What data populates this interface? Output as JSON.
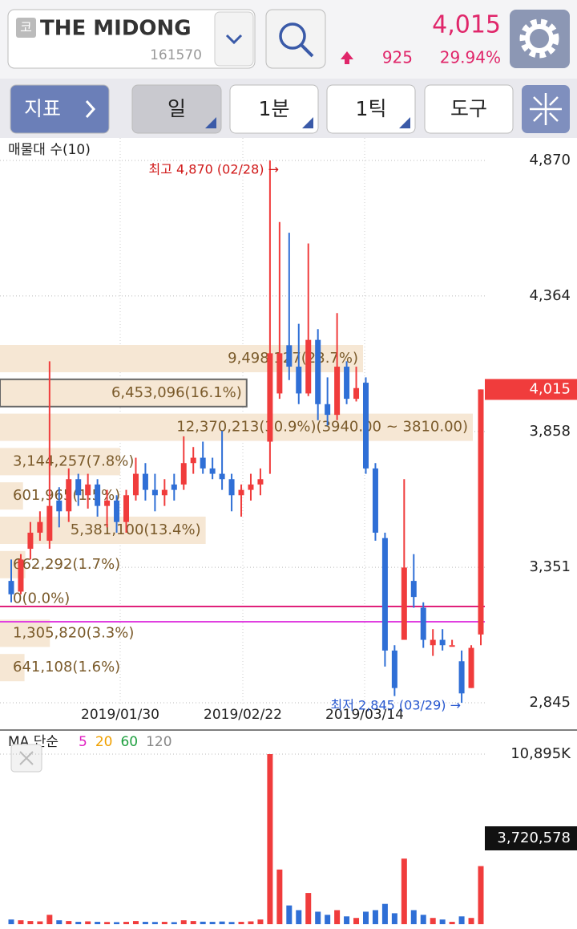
{
  "header": {
    "code_badge": "코",
    "name": "THE MIDONG",
    "code": "161570",
    "price": "4,015",
    "change": "925",
    "change_pct": "29.94%"
  },
  "toolbar": {
    "buttons": [
      "지표",
      "일",
      "1분",
      "1틱",
      "도구"
    ]
  },
  "chart": {
    "profile_title": "매물대 수(10)",
    "ylim": [
      2845,
      4870
    ],
    "yticks": [
      {
        "value": 4870,
        "label": "4,870"
      },
      {
        "value": 4364,
        "label": "4,364"
      },
      {
        "value": 3858,
        "label": "3,858"
      },
      {
        "value": 3351,
        "label": "3,351"
      },
      {
        "value": 2845,
        "label": "2,845"
      }
    ],
    "current_price": {
      "value": 4015,
      "label": "4,015"
    },
    "high_label": "최고 4,870 (02/28) →",
    "low_label": "최저 2,845 (03/29) →",
    "dates": [
      "2019/01/30",
      "2019/02/22",
      "2019/03/14"
    ],
    "up_color": "#f03c3c",
    "down_color": "#2f6fd6",
    "candles": [
      [
        3300,
        3380,
        3220,
        3250
      ],
      [
        3260,
        3400,
        3250,
        3380
      ],
      [
        3420,
        3520,
        3380,
        3480
      ],
      [
        3480,
        3560,
        3450,
        3520
      ],
      [
        3450,
        4120,
        3420,
        3580
      ],
      [
        3600,
        3650,
        3500,
        3560
      ],
      [
        3560,
        3720,
        3520,
        3680
      ],
      [
        3680,
        3700,
        3580,
        3620
      ],
      [
        3620,
        3700,
        3570,
        3660
      ],
      [
        3660,
        3680,
        3540,
        3580
      ],
      [
        3580,
        3640,
        3500,
        3600
      ],
      [
        3600,
        3620,
        3480,
        3520
      ],
      [
        3520,
        3640,
        3480,
        3620
      ],
      [
        3620,
        3760,
        3600,
        3700
      ],
      [
        3700,
        3740,
        3600,
        3640
      ],
      [
        3640,
        3700,
        3560,
        3620
      ],
      [
        3620,
        3680,
        3580,
        3640
      ],
      [
        3660,
        3700,
        3600,
        3640
      ],
      [
        3660,
        3840,
        3640,
        3740
      ],
      [
        3740,
        3800,
        3700,
        3760
      ],
      [
        3760,
        3820,
        3700,
        3720
      ],
      [
        3720,
        3760,
        3680,
        3700
      ],
      [
        3700,
        3860,
        3640,
        3680
      ],
      [
        3680,
        3700,
        3560,
        3620
      ],
      [
        3620,
        3660,
        3540,
        3640
      ],
      [
        3640,
        3700,
        3600,
        3660
      ],
      [
        3660,
        3720,
        3620,
        3680
      ],
      [
        3820,
        4870,
        3700,
        4150
      ],
      [
        4000,
        4640,
        3980,
        4150
      ],
      [
        4180,
        4600,
        4050,
        4100
      ],
      [
        4100,
        4260,
        3960,
        4000
      ],
      [
        4000,
        4560,
        3990,
        4200
      ],
      [
        4200,
        4240,
        3900,
        3960
      ],
      [
        3960,
        4060,
        3880,
        3920
      ],
      [
        3920,
        4300,
        3900,
        4100
      ],
      [
        4100,
        4120,
        3960,
        3980
      ],
      [
        3980,
        4100,
        3970,
        4020
      ],
      [
        4040,
        4060,
        3700,
        3720
      ],
      [
        3720,
        3740,
        3450,
        3480
      ],
      [
        3460,
        3480,
        2980,
        3040
      ],
      [
        3040,
        3060,
        2870,
        2900
      ],
      [
        3080,
        3680,
        3080,
        3350
      ],
      [
        3300,
        3400,
        3200,
        3240
      ],
      [
        3200,
        3220,
        3050,
        3080
      ],
      [
        3060,
        3120,
        3020,
        3080
      ],
      [
        3080,
        3120,
        3040,
        3060
      ],
      [
        3060,
        3080,
        3060,
        3060
      ],
      [
        3000,
        3040,
        2845,
        2880
      ],
      [
        2900,
        3060,
        2900,
        3050
      ],
      [
        3100,
        4015,
        3060,
        4015
      ]
    ],
    "profile": [
      {
        "volume": 9498127,
        "label": "9,498,127(23.7%)"
      },
      {
        "volume": 6453096,
        "label": "6,453,096(16.1%)"
      },
      {
        "volume": 12370213,
        "label": "12,370,213(30.9%)(3940.00 ~ 3810.00)"
      },
      {
        "volume": 3144257,
        "label": "3,144,257(7.8%)"
      },
      {
        "volume": 601965,
        "label": "601,965(1.5%)"
      },
      {
        "volume": 5381100,
        "label": "5,381,100(13.4%)"
      },
      {
        "volume": 662292,
        "label": "662,292(1.7%)"
      },
      {
        "volume": 0,
        "label": "0(0.0%)"
      },
      {
        "volume": 1305820,
        "label": "1,305,820(3.3%)"
      },
      {
        "volume": 641108,
        "label": "641,108(1.6%)"
      }
    ]
  },
  "volume": {
    "title": "MA 단순",
    "ma": [
      {
        "period": 5,
        "color": "#e020c0"
      },
      {
        "period": 20,
        "color": "#f0a000"
      },
      {
        "period": 60,
        "color": "#20a040"
      },
      {
        "period": 120,
        "color": "#888888"
      }
    ],
    "ylim": [
      0,
      10895000
    ],
    "yticks": [
      {
        "value": 10895000,
        "label": "10,895K"
      }
    ],
    "current": {
      "value": 3720578,
      "label": "3,720,578"
    },
    "values": [
      300000,
      250000,
      200000,
      180000,
      600000,
      250000,
      200000,
      150000,
      180000,
      150000,
      140000,
      130000,
      150000,
      200000,
      150000,
      140000,
      150000,
      130000,
      250000,
      200000,
      160000,
      150000,
      170000,
      140000,
      150000,
      180000,
      300000,
      10895000,
      3500000,
      1200000,
      900000,
      2000000,
      800000,
      600000,
      900000,
      500000,
      400000,
      800000,
      900000,
      1300000,
      700000,
      4200000,
      900000,
      600000,
      400000,
      300000,
      150000,
      500000,
      400000,
      3720578
    ]
  }
}
